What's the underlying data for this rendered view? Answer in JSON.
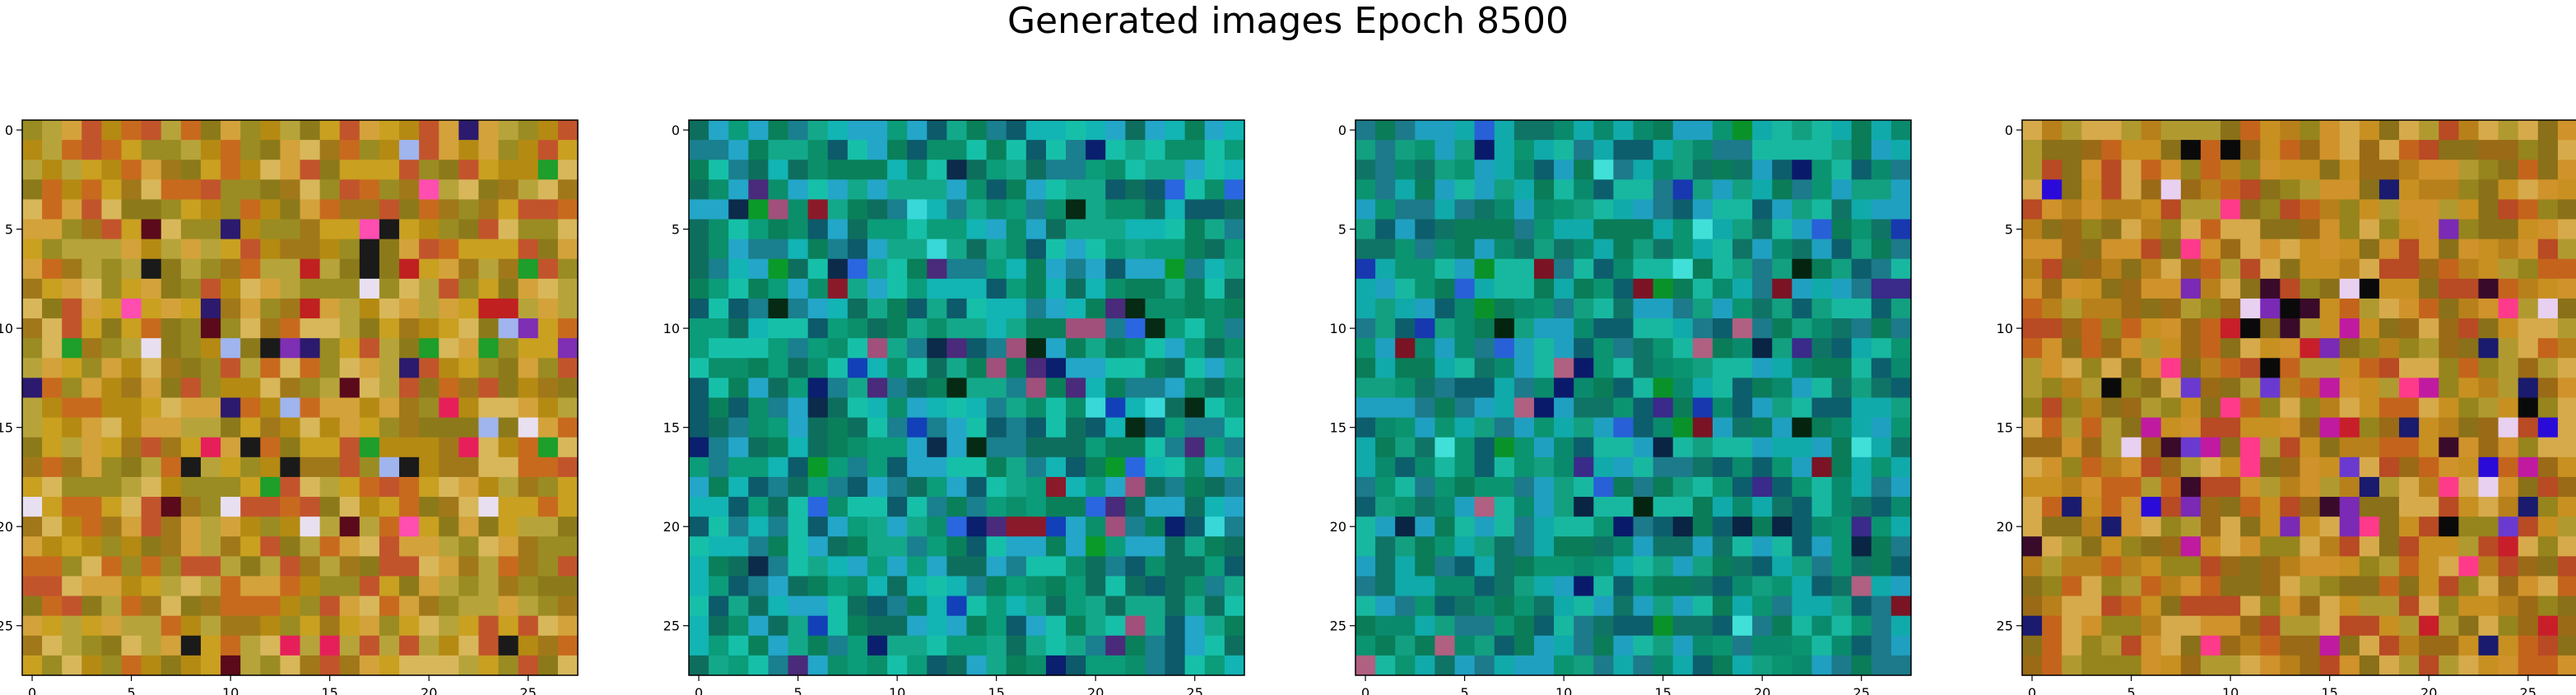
{
  "figure": {
    "title": "Generated images Epoch 8500"
  },
  "chart_data": [
    {
      "type": "heatmap",
      "panel": 1,
      "palette": "warm",
      "grid": false,
      "xlim": [
        -0.5,
        27.5
      ],
      "ylim": [
        27.5,
        -0.5
      ],
      "xticks": [
        0,
        5,
        10,
        15,
        20,
        25
      ],
      "yticks": [
        0,
        5,
        10,
        15,
        20,
        25
      ],
      "base_colors": [
        "#b58a12",
        "#c9a020",
        "#a0781a",
        "#d4a23a",
        "#8c7a1a",
        "#c86a1e",
        "#b6a43a",
        "#c2542c",
        "#d8b75a",
        "#9a8c22"
      ],
      "accent_colors": [
        "#7e2fb4",
        "#e61f5a",
        "#2c1a6e",
        "#1e9e2a",
        "#e8e0f0",
        "#a0b4ee",
        "#5a0a1a",
        "#ff4db0",
        "#c02020",
        "#1a1a1a"
      ]
    },
    {
      "type": "heatmap",
      "panel": 2,
      "palette": "cool",
      "grid": false,
      "xlim": [
        -0.5,
        27.5
      ],
      "ylim": [
        27.5,
        -0.5
      ],
      "xticks": [
        0,
        5,
        10,
        15,
        20,
        25
      ],
      "yticks": [
        0,
        5,
        10,
        15,
        20,
        25
      ],
      "base_colors": [
        "#0a8f6a",
        "#14a88a",
        "#0e6e5e",
        "#16c0a8",
        "#0b9c7a",
        "#1a7f8e",
        "#12b4b4",
        "#0c5a6a",
        "#23a6c8",
        "#09805a"
      ],
      "accent_colors": [
        "#0a1f6e",
        "#1240b8",
        "#a0507a",
        "#8a1a2a",
        "#062a14",
        "#2a66e0",
        "#0a9a2a",
        "#4a2a7a",
        "#38d8d8",
        "#0c2a4a"
      ]
    },
    {
      "type": "heatmap",
      "panel": 3,
      "palette": "cool",
      "grid": false,
      "xlim": [
        -0.5,
        27.5
      ],
      "ylim": [
        27.5,
        -0.5
      ],
      "xticks": [
        0,
        5,
        10,
        15,
        20,
        25
      ],
      "yticks": [
        0,
        5,
        10,
        15,
        20,
        25
      ],
      "base_colors": [
        "#0b9470",
        "#12a080",
        "#0f7466",
        "#18b8a0",
        "#0a8a6c",
        "#1c7a8a",
        "#10aaaa",
        "#0d5e6c",
        "#20a0c0",
        "#0a7c58"
      ],
      "accent_colors": [
        "#0a1a6a",
        "#1838b0",
        "#b06080",
        "#7a1424",
        "#052410",
        "#2860d8",
        "#0a922a",
        "#3a2a8a",
        "#40e0d8",
        "#0a2444"
      ]
    },
    {
      "type": "heatmap",
      "panel": 4,
      "palette": "warm",
      "grid": false,
      "xlim": [
        -0.5,
        27.5
      ],
      "ylim": [
        27.5,
        -0.5
      ],
      "xticks": [
        0,
        5,
        10,
        15,
        20,
        25
      ],
      "yticks": [
        0,
        5,
        10,
        15,
        20,
        25
      ],
      "base_colors": [
        "#b8801a",
        "#c89020",
        "#9a6a16",
        "#d0922a",
        "#8a7018",
        "#c4641c",
        "#b09a30",
        "#b84a24",
        "#d6aa4a",
        "#96841c"
      ],
      "accent_colors": [
        "#2a0ad8",
        "#c01aa0",
        "#1a1a6e",
        "#3a0a2a",
        "#e8d0f0",
        "#7a2ab4",
        "#ff3a8a",
        "#0a0a0a",
        "#c81e2a",
        "#6a3ad0"
      ]
    }
  ]
}
